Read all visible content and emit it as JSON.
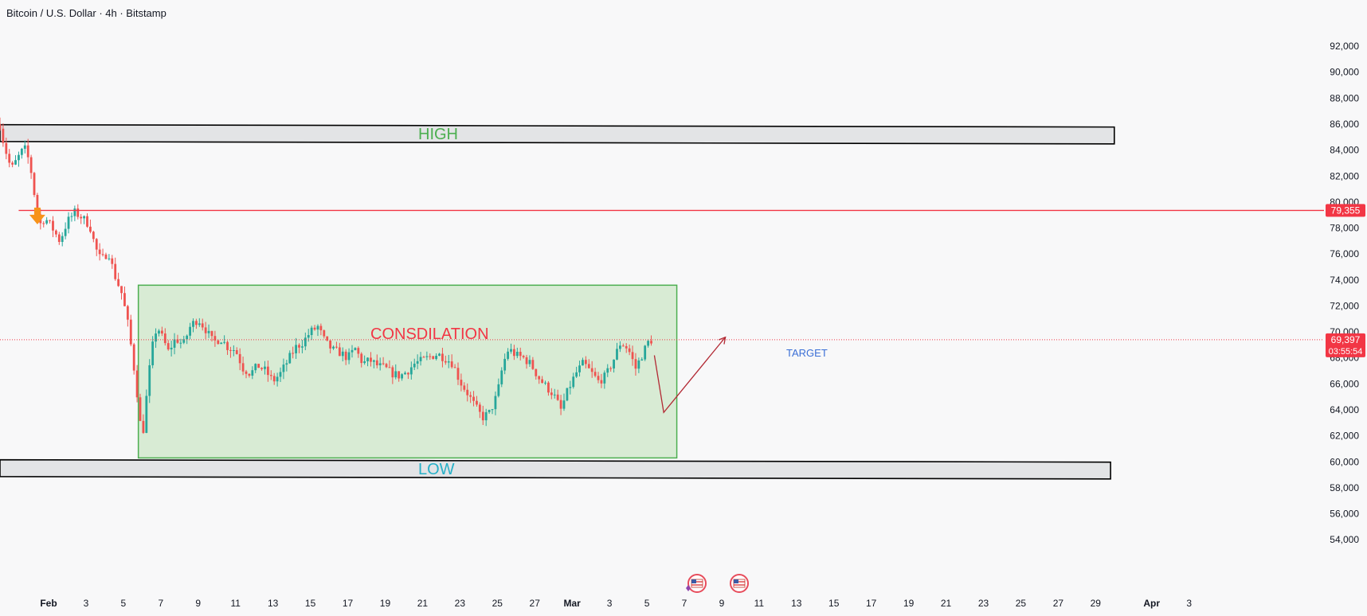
{
  "chart_data": {
    "type": "candlestick",
    "title": "Bitcoin / U.S. Dollar · 4h · Bitstamp",
    "y_ticks": [
      54000,
      56000,
      58000,
      60000,
      62000,
      64000,
      66000,
      68000,
      70000,
      72000,
      74000,
      76000,
      78000,
      80000,
      82000,
      84000,
      86000,
      88000,
      90000,
      92000
    ],
    "y_tick_labels": [
      "54,000",
      "56,000",
      "58,000",
      "60,000",
      "62,000",
      "64,000",
      "66,000",
      "68,000",
      "70,000",
      "72,000",
      "74,000",
      "76,000",
      "78,000",
      "80,000",
      "82,000",
      "84,000",
      "86,000",
      "88,000",
      "90,000",
      "92,000"
    ],
    "x_ticks": [
      {
        "label": "Feb",
        "day": 1
      },
      {
        "label": "3",
        "day": 3
      },
      {
        "label": "5",
        "day": 5
      },
      {
        "label": "7",
        "day": 7
      },
      {
        "label": "9",
        "day": 9
      },
      {
        "label": "11",
        "day": 11
      },
      {
        "label": "13",
        "day": 13
      },
      {
        "label": "15",
        "day": 15
      },
      {
        "label": "17",
        "day": 17
      },
      {
        "label": "19",
        "day": 19
      },
      {
        "label": "21",
        "day": 21
      },
      {
        "label": "23",
        "day": 23
      },
      {
        "label": "25",
        "day": 25
      },
      {
        "label": "27",
        "day": 27
      },
      {
        "label": "Mar",
        "day": 29
      },
      {
        "label": "3",
        "day": 31
      },
      {
        "label": "5",
        "day": 33
      },
      {
        "label": "7",
        "day": 35
      },
      {
        "label": "9",
        "day": 37
      },
      {
        "label": "11",
        "day": 39
      },
      {
        "label": "13",
        "day": 41
      },
      {
        "label": "15",
        "day": 43
      },
      {
        "label": "17",
        "day": 45
      },
      {
        "label": "19",
        "day": 47
      },
      {
        "label": "21",
        "day": 49
      },
      {
        "label": "23",
        "day": 51
      },
      {
        "label": "25",
        "day": 53
      },
      {
        "label": "27",
        "day": 55
      },
      {
        "label": "29",
        "day": 57
      },
      {
        "label": "Apr",
        "day": 60
      },
      {
        "label": "3",
        "day": 62
      }
    ],
    "price_path": [
      [
        -1.6,
        86000
      ],
      [
        -1.4,
        84500
      ],
      [
        -1.0,
        82500
      ],
      [
        -0.6,
        83500
      ],
      [
        -0.3,
        84200
      ],
      [
        0.0,
        83000
      ],
      [
        0.3,
        80000
      ],
      [
        0.5,
        78200
      ],
      [
        0.8,
        78800
      ],
      [
        1.2,
        78000
      ],
      [
        1.6,
        77000
      ],
      [
        2.0,
        78500
      ],
      [
        2.4,
        79200
      ],
      [
        2.8,
        78800
      ],
      [
        3.2,
        78200
      ],
      [
        3.5,
        76500
      ],
      [
        3.8,
        75500
      ],
      [
        4.2,
        76200
      ],
      [
        4.5,
        74500
      ],
      [
        4.9,
        73000
      ],
      [
        5.2,
        71000
      ],
      [
        5.5,
        68000
      ],
      [
        5.8,
        64500
      ],
      [
        6.0,
        61500
      ],
      [
        6.2,
        64500
      ],
      [
        6.5,
        68500
      ],
      [
        6.8,
        70500
      ],
      [
        7.1,
        69500
      ],
      [
        7.4,
        68500
      ],
      [
        7.8,
        69500
      ],
      [
        8.2,
        69000
      ],
      [
        8.6,
        70500
      ],
      [
        9.0,
        71000
      ],
      [
        9.4,
        70200
      ],
      [
        9.8,
        69200
      ],
      [
        10.2,
        69500
      ],
      [
        10.6,
        68800
      ],
      [
        11.0,
        68600
      ],
      [
        11.4,
        67200
      ],
      [
        11.8,
        66800
      ],
      [
        12.2,
        67400
      ],
      [
        12.6,
        67000
      ],
      [
        13.0,
        66200
      ],
      [
        13.4,
        66800
      ],
      [
        13.8,
        67800
      ],
      [
        14.2,
        68800
      ],
      [
        14.6,
        69200
      ],
      [
        15.0,
        70000
      ],
      [
        15.4,
        70400
      ],
      [
        15.8,
        69200
      ],
      [
        16.2,
        68600
      ],
      [
        16.6,
        68400
      ],
      [
        17.0,
        68000
      ],
      [
        17.4,
        68700
      ],
      [
        17.8,
        67600
      ],
      [
        18.2,
        67800
      ],
      [
        18.6,
        67400
      ],
      [
        19.0,
        67200
      ],
      [
        19.4,
        66800
      ],
      [
        19.8,
        66600
      ],
      [
        20.2,
        67000
      ],
      [
        20.6,
        67600
      ],
      [
        21.0,
        67800
      ],
      [
        21.4,
        68100
      ],
      [
        21.8,
        68300
      ],
      [
        22.2,
        68000
      ],
      [
        22.6,
        67600
      ],
      [
        23.0,
        66200
      ],
      [
        23.4,
        65300
      ],
      [
        23.8,
        64300
      ],
      [
        24.2,
        63400
      ],
      [
        24.6,
        63800
      ],
      [
        25.0,
        65200
      ],
      [
        25.3,
        67500
      ],
      [
        25.6,
        68700
      ],
      [
        26.0,
        68200
      ],
      [
        26.4,
        68000
      ],
      [
        26.8,
        67500
      ],
      [
        27.2,
        66500
      ],
      [
        27.6,
        65800
      ],
      [
        28.0,
        65200
      ],
      [
        28.4,
        64000
      ],
      [
        28.8,
        65600
      ],
      [
        29.2,
        66800
      ],
      [
        29.6,
        67600
      ],
      [
        30.0,
        66900
      ],
      [
        30.4,
        66200
      ],
      [
        30.8,
        66600
      ],
      [
        31.2,
        67800
      ],
      [
        31.6,
        69200
      ],
      [
        32.0,
        68700
      ],
      [
        32.4,
        67200
      ],
      [
        32.8,
        68400
      ],
      [
        33.1,
        69300
      ],
      [
        33.3,
        69397
      ]
    ],
    "annotations": {
      "high_zone": {
        "label": "HIGH",
        "y_top": 85900,
        "y_bottom": 84600,
        "x_start": -1.6,
        "x_end": 58.0
      },
      "low_zone": {
        "label": "LOW",
        "y_top": 60100,
        "y_bottom": 58800,
        "x_start": -1.6,
        "x_end": 57.8
      },
      "consolidation": {
        "label": "CONSDILATION",
        "y_top": 73600,
        "y_bottom": 60300,
        "x_start": 5.8,
        "x_end": 34.6
      },
      "resistance_line": {
        "price": 79355,
        "label": "79,355",
        "x_start": -0.6
      },
      "current_price": {
        "price": 69397,
        "label": "69,397",
        "countdown": "03:55:54"
      },
      "target": {
        "label": "TARGET",
        "path": [
          [
            33.4,
            68200
          ],
          [
            33.9,
            63800
          ],
          [
            37.2,
            69600
          ]
        ]
      },
      "down_arrow": {
        "x": 0.4,
        "y": 78900
      }
    },
    "colors": {
      "up": "#26a69a",
      "down": "#ef5350",
      "resistance": "#f23645",
      "consolidation_fill": "#d8ebd4",
      "consolidation_border": "#4caf50",
      "zone_fill": "#e3e4e6",
      "high_text": "#4caf50",
      "low_text": "#26b0c7",
      "consolidation_text": "#f23645",
      "target_text": "#3b6fd6",
      "target_path": "#b22833",
      "arrow": "#f7931a"
    }
  }
}
